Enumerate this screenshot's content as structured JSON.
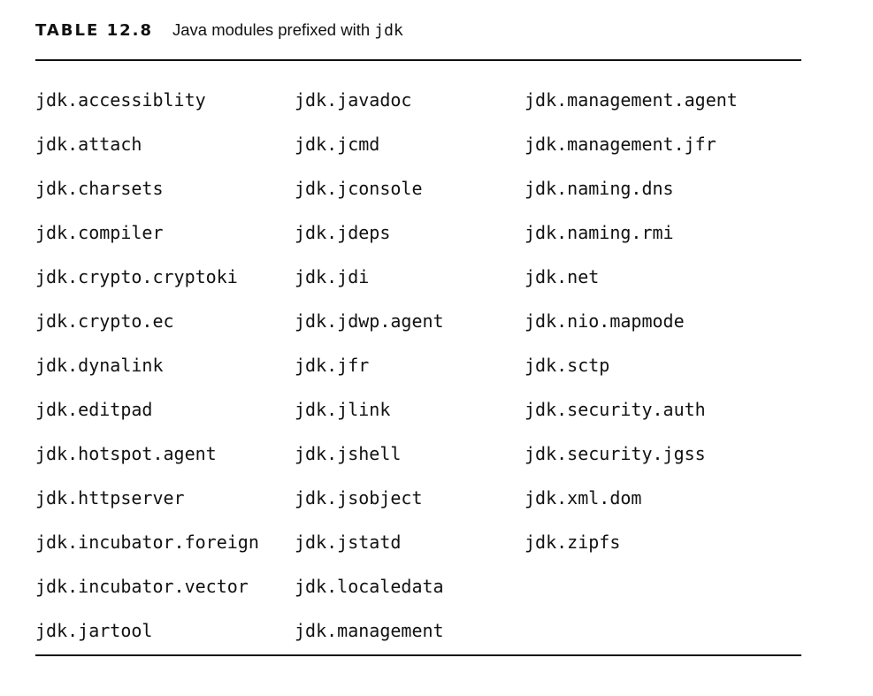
{
  "caption": {
    "label": "TABLE 12.8",
    "text": "Java modules prefixed with ",
    "code": "jdk"
  },
  "table": {
    "columns": [
      [
        "jdk.accessiblity",
        "jdk.attach",
        "jdk.charsets",
        "jdk.compiler",
        "jdk.crypto.cryptoki",
        "jdk.crypto.ec",
        "jdk.dynalink",
        "jdk.editpad",
        "jdk.hotspot.agent",
        "jdk.httpserver",
        "jdk.incubator.foreign",
        "jdk.incubator.vector",
        "jdk.jartool"
      ],
      [
        "jdk.javadoc",
        "jdk.jcmd",
        "jdk.jconsole",
        "jdk.jdeps",
        "jdk.jdi",
        "jdk.jdwp.agent",
        "jdk.jfr",
        "jdk.jlink",
        "jdk.jshell",
        "jdk.jsobject",
        "jdk.jstatd",
        "jdk.localedata",
        "jdk.management"
      ],
      [
        "jdk.management.agent",
        "jdk.management.jfr",
        "jdk.naming.dns",
        "jdk.naming.rmi",
        "jdk.net",
        "jdk.nio.mapmode",
        "jdk.sctp",
        "jdk.security.auth",
        "jdk.security.jgss",
        "jdk.xml.dom",
        "jdk.zipfs"
      ]
    ]
  }
}
